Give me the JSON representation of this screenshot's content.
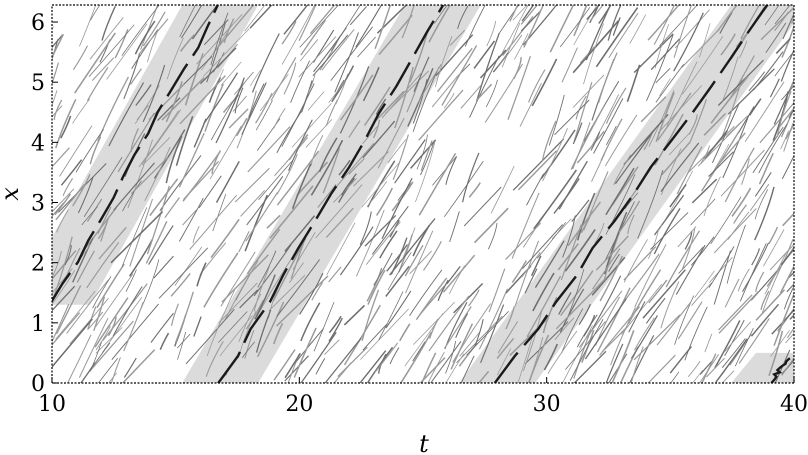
{
  "chart_data": {
    "type": "heatmap",
    "title": "",
    "xlabel": "t",
    "ylabel": "x",
    "xlim": [
      10,
      40
    ],
    "ylim": [
      0,
      6.283
    ],
    "xticks": [
      10,
      20,
      30,
      40
    ],
    "xtick_labels": [
      "10",
      "20",
      "30",
      "40"
    ],
    "yticks": [
      0,
      1,
      2,
      3,
      4,
      5,
      6
    ],
    "ytick_labels": [
      "0",
      "1",
      "2",
      "3",
      "4",
      "5",
      "6"
    ],
    "grid": false,
    "colors": {
      "contour_light": "#9a9a9a",
      "contour_dark": "#1a1a1a",
      "band_fill": "#bdbdbd",
      "background": "#ffffff"
    },
    "fronts": [
      {
        "t_start": 10.0,
        "x_start": 1.3,
        "t_end": 16.8,
        "x_end": 6.283
      },
      {
        "t_start": 16.8,
        "x_start": 0.0,
        "t_end": 25.8,
        "x_end": 6.283
      },
      {
        "t_start": 28.0,
        "x_start": 0.0,
        "t_end": 39.0,
        "x_end": 6.283
      },
      {
        "t_start": 39.0,
        "x_start": 0.0,
        "t_end": 40.0,
        "x_end": 0.5
      }
    ],
    "streak_slope_dx_dt": 0.68
  }
}
